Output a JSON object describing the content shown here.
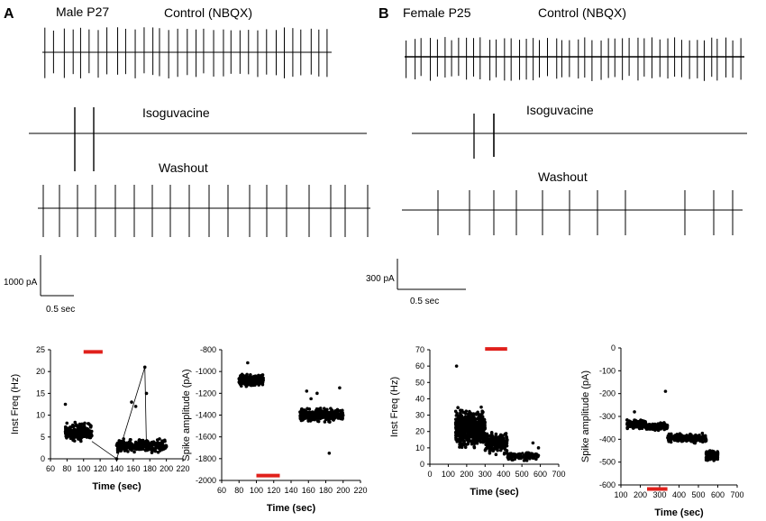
{
  "panel_a": {
    "letter": "A",
    "subject": "Male P27",
    "traces": {
      "control": "Control (NBQX)",
      "drug": "Isoguvacine",
      "washout": "Washout"
    },
    "scale": {
      "current": "1000 pA",
      "time": "0.5 sec"
    }
  },
  "panel_b": {
    "letter": "B",
    "subject": "Female P25",
    "traces": {
      "control": "Control (NBQX)",
      "drug": "Isoguvacine",
      "washout": "Washout"
    },
    "scale": {
      "current": "300 pA",
      "time": "0.5 sec"
    }
  },
  "colors": {
    "drug": "#e0201b",
    "ink": "#000000"
  },
  "chart_data": [
    {
      "id": "a_freq",
      "type": "scatter",
      "xlabel": "Time (sec)",
      "ylabel": "Inst Freq (Hz)",
      "xlim": [
        60,
        220
      ],
      "ylim": [
        0,
        25
      ],
      "xticks": [
        60,
        80,
        100,
        120,
        140,
        160,
        180,
        200,
        220
      ],
      "yticks": [
        0,
        5,
        10,
        15,
        20,
        25
      ],
      "yticklabels": [
        "0",
        "5",
        "10",
        "15",
        "20",
        "25"
      ],
      "drug_bar": [
        100,
        123
      ],
      "drug_bar_y": 24.5,
      "clusters": [
        {
          "x": [
            78,
            110
          ],
          "y_center": 6,
          "y_spread": 2.5,
          "n": 260
        },
        {
          "x": [
            140,
            200
          ],
          "y_center": 3,
          "y_spread": 2,
          "n": 260
        }
      ],
      "points": [
        [
          78,
          12.5
        ],
        [
          174,
          21
        ],
        [
          176,
          15
        ],
        [
          158,
          13
        ],
        [
          163,
          12
        ],
        [
          140,
          0
        ]
      ]
    },
    {
      "id": "a_amp",
      "type": "scatter",
      "xlabel": "Time (sec)",
      "ylabel": "Spike amplitude (pA)",
      "xlim": [
        60,
        220
      ],
      "ylim": [
        -2000,
        -800
      ],
      "xticks": [
        60,
        80,
        100,
        120,
        140,
        160,
        180,
        200,
        220
      ],
      "yticks": [
        -2000,
        -1800,
        -1600,
        -1400,
        -1200,
        -1000,
        -800
      ],
      "yticklabels": [
        "-2000",
        "-1800",
        "-1600",
        "-1400",
        "-1200",
        "-1000",
        "-800"
      ],
      "drug_bar": [
        100,
        127
      ],
      "drug_bar_y": -1955,
      "clusters": [
        {
          "x": [
            80,
            108
          ],
          "y_center": -1080,
          "y_spread": 70,
          "n": 260
        },
        {
          "x": [
            150,
            200
          ],
          "y_center": -1400,
          "y_spread": 80,
          "n": 300
        }
      ],
      "points": [
        [
          184,
          -1750
        ],
        [
          158,
          -1180
        ],
        [
          170,
          -1200
        ],
        [
          196,
          -1150
        ],
        [
          163,
          -1250
        ],
        [
          90,
          -920
        ]
      ]
    },
    {
      "id": "b_freq",
      "type": "scatter",
      "xlabel": "Time (sec)",
      "ylabel": "Inst Freq (Hz)",
      "xlim": [
        0,
        700
      ],
      "ylim": [
        0,
        70
      ],
      "xticks": [
        0,
        100,
        200,
        300,
        400,
        500,
        600,
        700
      ],
      "yticks": [
        0,
        10,
        20,
        30,
        40,
        50,
        60,
        70
      ],
      "yticklabels": [
        "0",
        "10",
        "20",
        "30",
        "40",
        "50",
        "60",
        "70"
      ],
      "drug_bar": [
        300,
        420
      ],
      "drug_bar_y": 70.5,
      "clusters": [
        {
          "x": [
            140,
            300
          ],
          "y_center": 22,
          "y_spread": 14,
          "n": 600
        },
        {
          "x": [
            300,
            420
          ],
          "y_center": 13,
          "y_spread": 8,
          "n": 200
        },
        {
          "x": [
            420,
            590
          ],
          "y_center": 5,
          "y_spread": 3,
          "n": 120
        }
      ],
      "points": [
        [
          145,
          60
        ],
        [
          420,
          15
        ],
        [
          560,
          13
        ],
        [
          590,
          10
        ]
      ]
    },
    {
      "id": "b_amp",
      "type": "scatter",
      "xlabel": "Time (sec)",
      "ylabel": "Spike amplitude (pA)",
      "xlim": [
        100,
        700
      ],
      "ylim": [
        -600,
        0
      ],
      "xticks": [
        100,
        200,
        300,
        400,
        500,
        600,
        700
      ],
      "yticks": [
        -600,
        -500,
        -400,
        -300,
        -200,
        -100,
        0
      ],
      "yticklabels": [
        "-600",
        "-500",
        "-400",
        "-300",
        "-200",
        "-100",
        "0"
      ],
      "drug_bar": [
        235,
        340
      ],
      "drug_bar_y": -618,
      "clusters": [
        {
          "x": [
            130,
            230
          ],
          "y_center": -335,
          "y_spread": 25,
          "n": 150
        },
        {
          "x": [
            230,
            340
          ],
          "y_center": -345,
          "y_spread": 20,
          "n": 140
        },
        {
          "x": [
            340,
            540
          ],
          "y_center": -395,
          "y_spread": 25,
          "n": 220
        },
        {
          "x": [
            540,
            600
          ],
          "y_center": -470,
          "y_spread": 28,
          "n": 160
        }
      ],
      "points": [
        [
          330,
          -190
        ],
        [
          170,
          -280
        ]
      ]
    }
  ]
}
